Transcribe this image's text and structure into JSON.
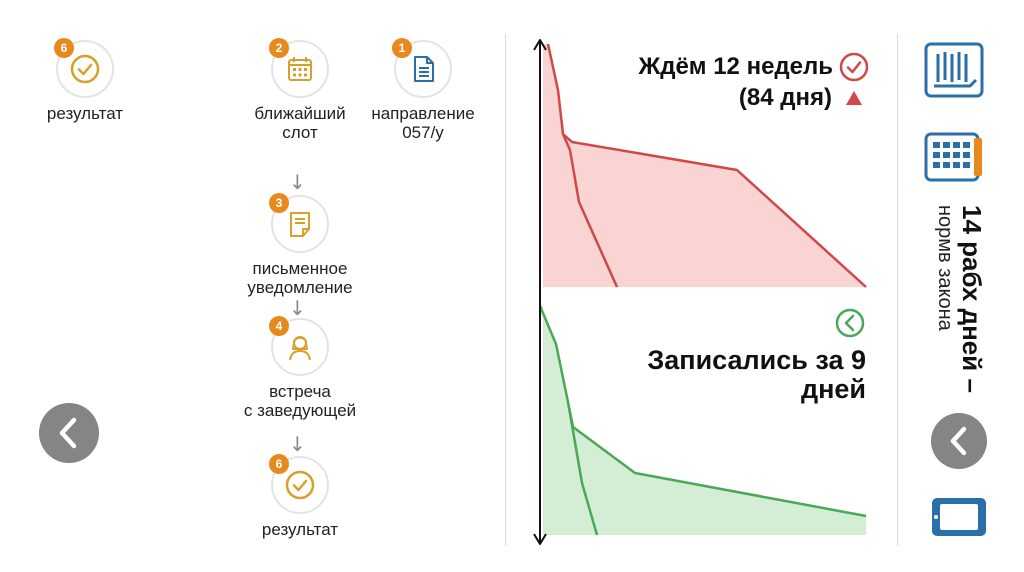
{
  "steps": {
    "result_top": {
      "num": "6",
      "label": "результат"
    },
    "slot": {
      "num": "2",
      "label": "ближайший\nслот"
    },
    "referral": {
      "num": "1",
      "label": "направление\n057/у"
    },
    "notice": {
      "num": "3",
      "label": "письменное\nуведомление"
    },
    "meeting": {
      "num": "4",
      "label": "встреча\nс заведующей"
    },
    "result_bottom": {
      "num": "6",
      "label": "результат"
    }
  },
  "arrow_glyph": "↓",
  "chart_data": {
    "type": "area",
    "panels": [
      {
        "title_line1": "Ждём 12 недель",
        "title_line2": "(84 дня)",
        "color": "#d04848",
        "fill": "#f9d4d2",
        "status_icon": "check-circle",
        "marker": "triangle-up"
      },
      {
        "title_line1": "Записались за 9",
        "title_line2": "дней",
        "color": "#4aa857",
        "fill": "#d3eed5",
        "status_icon": "back-circle"
      }
    ]
  },
  "side": {
    "big_text": "14 рабх дней –",
    "small_text": "нормв закона"
  },
  "colors": {
    "accent_orange": "#e8891e",
    "icon_blue": "#2b6fa8",
    "nav_grey": "#858585"
  }
}
